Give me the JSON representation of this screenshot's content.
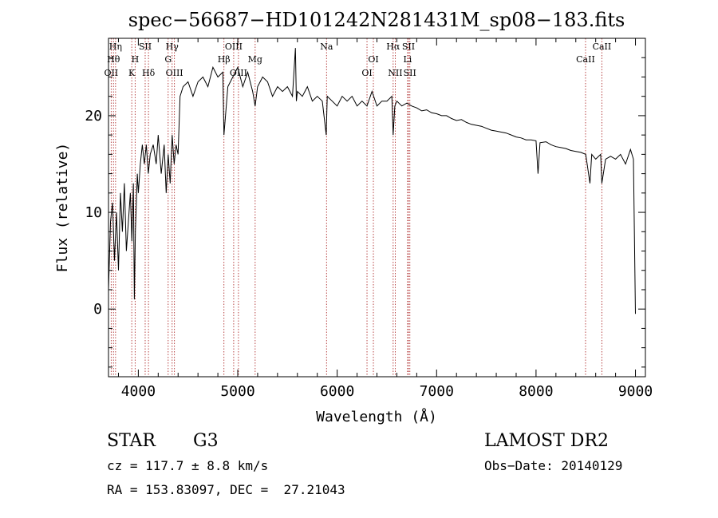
{
  "chart_data": {
    "type": "line",
    "title": "spec−56687−HD101242N281431M_sp08−183.fits",
    "xlabel": "Wavelength (Å)",
    "ylabel": "Flux (relative)",
    "xlim": [
      3700,
      9100
    ],
    "ylim": [
      -7,
      28
    ],
    "x_ticks": [
      4000,
      5000,
      6000,
      7000,
      8000,
      9000
    ],
    "x_tick_labels": [
      "4000",
      "5000",
      "6000",
      "7000",
      "8000",
      "9000"
    ],
    "y_ticks": [
      0,
      10,
      20
    ],
    "y_tick_labels": [
      "0",
      "10",
      "20"
    ],
    "grid": false,
    "series": [
      {
        "x": [
          3700,
          3720,
          3740,
          3760,
          3780,
          3800,
          3820,
          3840,
          3860,
          3880,
          3900,
          3920,
          3935,
          3950,
          3960,
          3970,
          3990,
          4000,
          4020,
          4040,
          4060,
          4080,
          4100,
          4120,
          4150,
          4180,
          4200,
          4230,
          4260,
          4280,
          4300,
          4320,
          4340,
          4360,
          4380,
          4400,
          4420,
          4450,
          4500,
          4550,
          4600,
          4650,
          4700,
          4750,
          4800,
          4850,
          4861,
          4900,
          4950,
          5000,
          5050,
          5100,
          5150,
          5175,
          5200,
          5250,
          5300,
          5350,
          5400,
          5450,
          5500,
          5550,
          5580,
          5590,
          5600,
          5650,
          5700,
          5750,
          5800,
          5850,
          5890,
          5900,
          5950,
          6000,
          6050,
          6100,
          6150,
          6200,
          6250,
          6300,
          6350,
          6400,
          6450,
          6500,
          6550,
          6563,
          6580,
          6600,
          6650,
          6700,
          6750,
          6800,
          6850,
          6900,
          6950,
          7000,
          7050,
          7100,
          7150,
          7200,
          7250,
          7300,
          7350,
          7400,
          7450,
          7500,
          7550,
          7600,
          7650,
          7700,
          7750,
          7800,
          7850,
          7900,
          7950,
          8000,
          8020,
          8040,
          8100,
          8150,
          8200,
          8250,
          8300,
          8350,
          8400,
          8450,
          8500,
          8542,
          8560,
          8600,
          8650,
          8662,
          8700,
          8750,
          8800,
          8850,
          8900,
          8950,
          8980,
          9000
        ],
        "y": [
          2,
          9,
          11,
          5,
          10,
          4,
          12,
          8,
          13,
          6,
          9,
          12,
          7,
          13,
          1,
          8,
          14,
          12,
          15,
          17,
          15,
          17,
          14,
          16,
          17,
          15,
          18,
          14,
          17,
          12,
          16,
          13,
          18,
          15,
          17,
          16,
          22,
          23,
          23.5,
          22,
          23.5,
          24,
          23,
          25,
          24,
          24.5,
          18,
          23,
          24,
          25,
          23,
          24.5,
          22.5,
          21,
          23,
          24,
          23.5,
          22,
          23,
          22.5,
          23,
          22,
          27,
          21.5,
          22.5,
          22,
          23,
          21.5,
          22,
          21.5,
          18,
          22,
          21.5,
          21,
          22,
          21.5,
          22,
          21,
          21.5,
          21,
          22.5,
          21,
          21.5,
          21.5,
          22,
          18,
          21,
          21.5,
          21,
          21.3,
          21,
          20.8,
          20.5,
          20.6,
          20.3,
          20.2,
          20,
          20,
          19.7,
          19.5,
          19.6,
          19.3,
          19.1,
          19,
          18.9,
          18.7,
          18.5,
          18.4,
          18.3,
          18.2,
          18,
          17.8,
          17.7,
          17.5,
          17.5,
          17.4,
          14,
          17.2,
          17.3,
          17,
          16.8,
          16.7,
          16.6,
          16.4,
          16.3,
          16.2,
          16,
          13,
          16,
          15.5,
          16,
          13,
          15.5,
          15.8,
          15.5,
          16,
          15,
          16.5,
          15.5,
          -0.5
        ]
      }
    ],
    "line_labels": [
      {
        "x": 3727,
        "label": "OII",
        "row": 3
      },
      {
        "x": 3750,
        "label": "Hθ",
        "row": 2
      },
      {
        "x": 3771,
        "label": "Hη",
        "row": 1
      },
      {
        "x": 3934,
        "label": "K",
        "row": 3
      },
      {
        "x": 3968,
        "label": "H",
        "row": 2
      },
      {
        "x": 4069,
        "label": "SII",
        "row": 1
      },
      {
        "x": 4102,
        "label": "Hδ",
        "row": 3
      },
      {
        "x": 4300,
        "label": "G",
        "row": 2
      },
      {
        "x": 4340,
        "label": "Hγ",
        "row": 1
      },
      {
        "x": 4363,
        "label": "OIII",
        "row": 3
      },
      {
        "x": 4861,
        "label": "Hβ",
        "row": 2
      },
      {
        "x": 4959,
        "label": "OIII",
        "row": 1
      },
      {
        "x": 5007,
        "label": "OIII",
        "row": 3
      },
      {
        "x": 5175,
        "label": "Mg",
        "row": 2
      },
      {
        "x": 5893,
        "label": "Na",
        "row": 1
      },
      {
        "x": 6300,
        "label": "OI",
        "row": 3
      },
      {
        "x": 6364,
        "label": "OI",
        "row": 2
      },
      {
        "x": 6563,
        "label": "Hα",
        "row": 1
      },
      {
        "x": 6584,
        "label": "NII",
        "row": 3
      },
      {
        "x": 6708,
        "label": "Li",
        "row": 2
      },
      {
        "x": 6717,
        "label": "SII",
        "row": 1
      },
      {
        "x": 6731,
        "label": "SII",
        "row": 3
      },
      {
        "x": 8498,
        "label": "CaII",
        "row": 2
      },
      {
        "x": 8662,
        "label": "CaII",
        "row": 1
      }
    ]
  },
  "info": {
    "object_class": "STAR",
    "subclass": "G3",
    "survey": "LAMOST DR2",
    "cz": "cz = 117.7 ± 8.8 km/s",
    "obs_date": "Obs−Date: 20140129",
    "radec": "RA = 153.83097, DEC =  27.21043"
  }
}
